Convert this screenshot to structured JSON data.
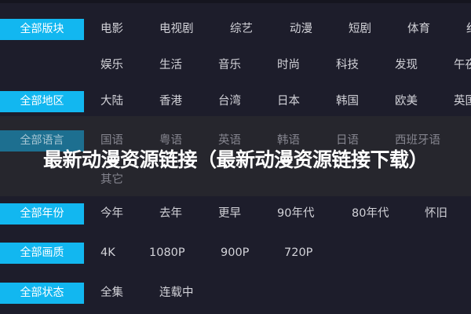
{
  "rows": [
    {
      "label": "全部版块",
      "items": [
        "电影",
        "电视剧",
        "综艺",
        "动漫",
        "短剧",
        "体育",
        "纪"
      ]
    },
    {
      "label": "",
      "items": [
        "娱乐",
        "生活",
        "音乐",
        "时尚",
        "科技",
        "发现",
        "午夜"
      ]
    },
    {
      "label": "全部地区",
      "items": [
        "大陆",
        "香港",
        "台湾",
        "日本",
        "韩国",
        "欧美",
        "英国"
      ]
    },
    {
      "label": "全部语言",
      "items": [
        "国语",
        "粤语",
        "英语",
        "韩语",
        "日语",
        "西班牙语"
      ]
    },
    {
      "label": "",
      "items": [
        "其它"
      ]
    },
    {
      "label": "全部年份",
      "items": [
        "今年",
        "去年",
        "更早",
        "90年代",
        "80年代",
        "怀旧"
      ]
    },
    {
      "label": "全部画质",
      "items": [
        "4K",
        "1080P",
        "900P",
        "720P"
      ]
    },
    {
      "label": "全部状态",
      "items": [
        "全集",
        "连载中"
      ]
    }
  ],
  "headline": "最新动漫资源链接（最新动漫资源链接下载）",
  "colors": {
    "accent": "#12b7f0",
    "background": "#1d1d2b"
  }
}
